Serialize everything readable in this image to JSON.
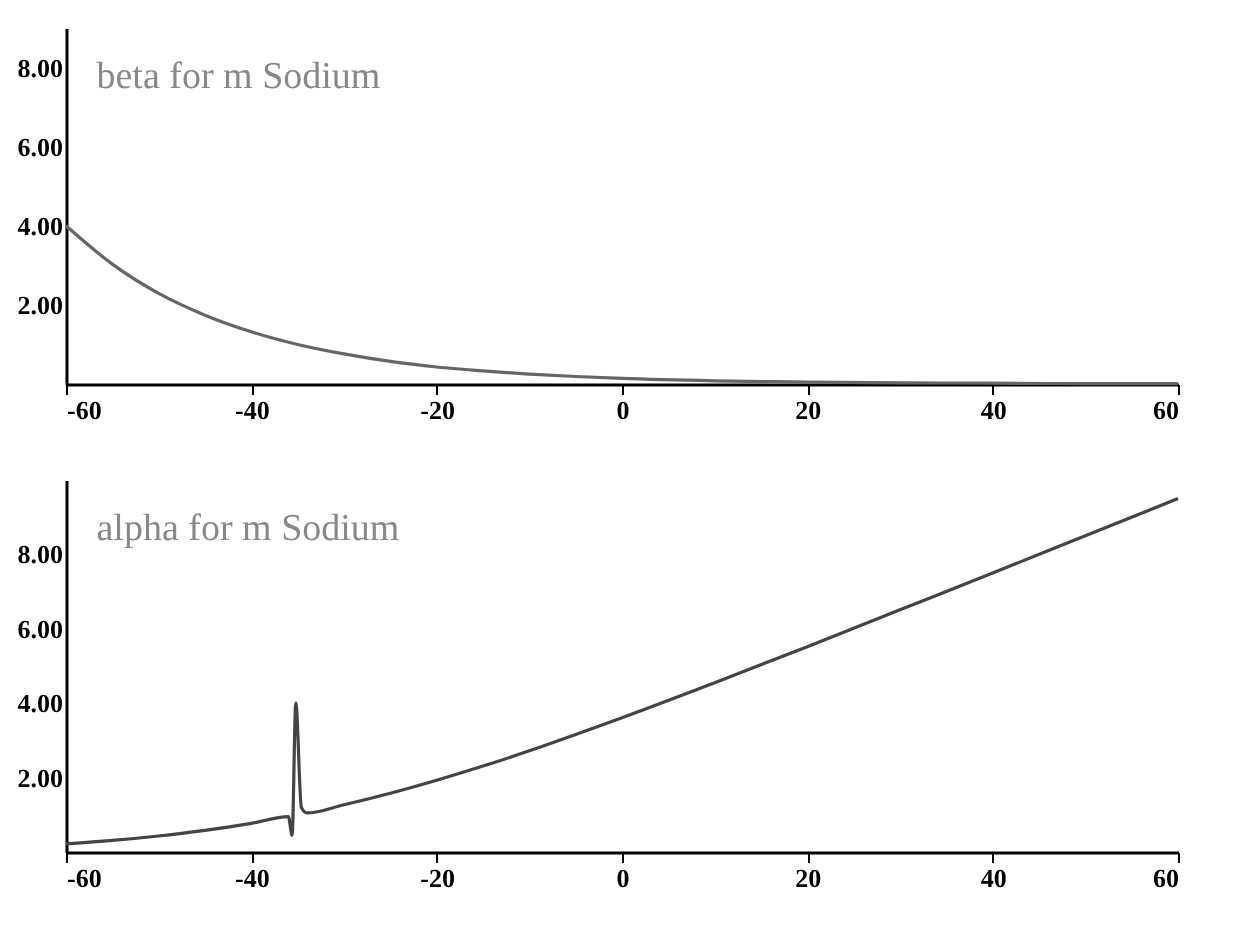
{
  "chart_data": [
    {
      "type": "line",
      "title": "beta for m Sodium",
      "x": [
        -60,
        -55,
        -50,
        -45,
        -40,
        -35,
        -30,
        -25,
        -20,
        -15,
        -10,
        -5,
        0,
        10,
        20,
        30,
        40,
        50,
        60
      ],
      "series": [
        {
          "color": "#666666",
          "values": [
            4.0,
            3.03,
            2.29,
            1.74,
            1.32,
            1.0,
            0.76,
            0.57,
            0.43,
            0.33,
            0.25,
            0.19,
            0.14,
            0.08,
            0.05,
            0.03,
            0.02,
            0.01,
            0.01
          ]
        }
      ],
      "xlim": [
        -60,
        60
      ],
      "xticks": [
        -60,
        -40,
        -20,
        0,
        20,
        40,
        60
      ],
      "ylim": [
        0,
        9
      ],
      "yticks": [
        {
          "value": 2,
          "label": "2.00"
        },
        {
          "value": 4,
          "label": "4.00"
        },
        {
          "value": 6,
          "label": "6.00"
        },
        {
          "value": 8,
          "label": "8.00"
        }
      ],
      "grid": false
    },
    {
      "type": "line",
      "title": "alpha for m Sodium",
      "x": [
        -60,
        -55,
        -50,
        -45,
        -40,
        -36,
        -35.6,
        -35.2,
        -34.6,
        -34,
        -30,
        -25,
        -20,
        -15,
        -10,
        -5,
        0,
        10,
        20,
        30,
        40,
        50,
        60
      ],
      "series": [
        {
          "color": "#444444",
          "values": [
            0.22,
            0.31,
            0.43,
            0.58,
            0.77,
            0.95,
            0.45,
            4.0,
            1.2,
            1.05,
            1.27,
            1.58,
            1.93,
            2.31,
            2.72,
            3.16,
            3.61,
            4.55,
            5.52,
            6.51,
            7.5,
            8.5,
            9.5
          ]
        }
      ],
      "xlim": [
        -60,
        60
      ],
      "xticks": [
        -60,
        -40,
        -20,
        0,
        20,
        40,
        60
      ],
      "ylim": [
        0,
        10
      ],
      "yticks": [
        {
          "value": 2,
          "label": "2.00"
        },
        {
          "value": 4,
          "label": "4.00"
        },
        {
          "value": 6,
          "label": "6.00"
        },
        {
          "value": 8,
          "label": "8.00"
        }
      ],
      "grid": false
    }
  ]
}
